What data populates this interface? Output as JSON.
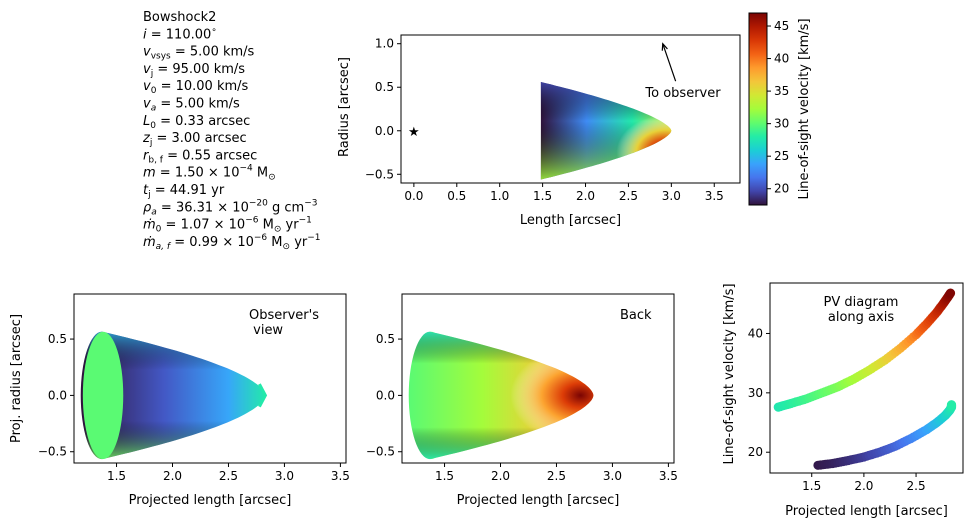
{
  "params": {
    "lines": [
      "Bowshock2",
      "i = 110.00°",
      "v_vsys = 5.00 km/s",
      "v_j = 95.00 km/s",
      "v_0 = 10.00 km/s",
      "v_a = 5.00 km/s",
      "L_0 = 0.33 arcsec",
      "z_j = 3.00 arcsec",
      "r_b,f = 0.55 arcsec",
      "m = 1.50 × 10^-4 M_⊙",
      "t_j = 44.91 yr",
      "ρ_a = 36.31 × 10^-20 g cm^-3",
      "ṁ_0 = 1.07 × 10^-6 M_⊙ yr^-1",
      "ṁ_a,f = 0.99 × 10^-6 M_⊙ yr^-1"
    ]
  },
  "colors": {
    "turbo": [
      "#30123b",
      "#4145ab",
      "#4675ed",
      "#39a2fc",
      "#1bcfd4",
      "#24eca6",
      "#61fc6c",
      "#a4fc3b",
      "#d1e834",
      "#f3c63a",
      "#fe9b2d",
      "#f36315",
      "#d93806",
      "#b11901",
      "#7a0403"
    ]
  },
  "chart_data": [
    {
      "id": "morphology",
      "type": "heatmap",
      "xlabel": "Length [arcsec]",
      "ylabel": "Radius [arcsec]",
      "xlim": [
        -0.15,
        3.8
      ],
      "ylim": [
        -0.6,
        1.1
      ],
      "xticks": [
        "0.0",
        "0.5",
        "1.0",
        "1.5",
        "2.0",
        "2.5",
        "3.0",
        "3.5"
      ],
      "yticks": [
        "−0.5",
        "0.0",
        "0.5",
        "1.0"
      ],
      "star": [
        0,
        0
      ],
      "shell": {
        "z_front": 3.0,
        "z_back": 1.48,
        "r_back": 0.56
      },
      "annotation": "To observer",
      "arrow": {
        "from": [
          3.05,
          0.57
        ],
        "to": [
          2.9,
          1.0
        ]
      },
      "colorbar": {
        "label": "Line-of-sight velocity [km/s]",
        "range": [
          17.5,
          47
        ],
        "ticks": [
          "20",
          "25",
          "30",
          "35",
          "40",
          "45"
        ]
      }
    },
    {
      "id": "observer-view",
      "type": "heatmap",
      "annotation": "Observer's\n view",
      "xlabel": "Projected length [arcsec]",
      "ylabel": "Proj. radius [arcsec]",
      "xlim": [
        1.12,
        3.55
      ],
      "ylim": [
        -0.6,
        0.9
      ],
      "xticks": [
        "1.5",
        "2.0",
        "2.5",
        "3.0",
        "3.5"
      ],
      "yticks": [
        "−0.5",
        "0.0",
        "0.5"
      ]
    },
    {
      "id": "back-view",
      "type": "heatmap",
      "annotation": "Back",
      "xlabel": "Projected length [arcsec]",
      "xlim": [
        1.12,
        3.55
      ],
      "ylim": [
        -0.6,
        0.9
      ],
      "xticks": [
        "1.5",
        "2.0",
        "2.5",
        "3.0",
        "3.5"
      ],
      "yticks": [
        "−0.5",
        "0.0",
        "0.5"
      ]
    },
    {
      "id": "pv-diagram",
      "type": "scatter",
      "annotation": "PV diagram\nalong axis",
      "xlabel": "Projected length [arcsec]",
      "ylabel": "Line-of-sight velocity [km/s]",
      "xlim": [
        1.1,
        2.95
      ],
      "ylim": [
        16.5,
        48.5
      ],
      "xticks": [
        "1.5",
        "2.0",
        "2.5"
      ],
      "yticks": [
        "20",
        "30",
        "40"
      ],
      "branches": [
        {
          "x": [
            1.18,
            1.3,
            1.45,
            1.6,
            1.75,
            1.9,
            2.05,
            2.2,
            2.35,
            2.5,
            2.6,
            2.7,
            2.76,
            2.8,
            2.83
          ],
          "y": [
            27.6,
            28.2,
            29.0,
            30.0,
            31.0,
            32.3,
            33.8,
            35.5,
            37.5,
            39.8,
            41.6,
            43.6,
            45.0,
            46.0,
            46.8
          ]
        },
        {
          "x": [
            1.56,
            1.7,
            1.85,
            2.0,
            2.15,
            2.3,
            2.45,
            2.6,
            2.7,
            2.78,
            2.82,
            2.84,
            2.84
          ],
          "y": [
            17.8,
            18.1,
            18.6,
            19.2,
            20.0,
            21.0,
            22.3,
            23.8,
            25.0,
            26.2,
            27.0,
            27.6,
            28.0
          ]
        }
      ]
    }
  ]
}
